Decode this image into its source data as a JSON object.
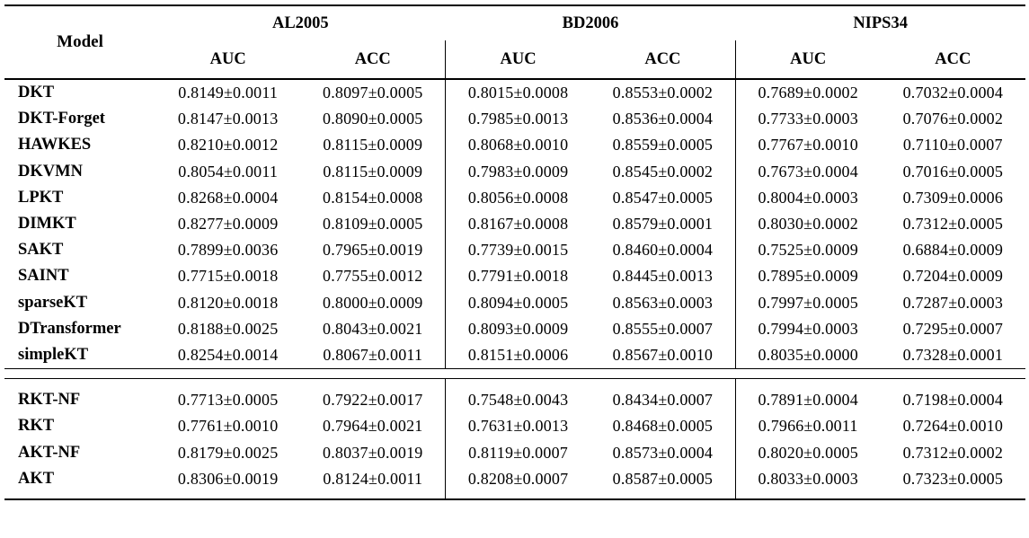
{
  "page": {
    "background": "#ffffff",
    "text_color": "#000000",
    "rule_color": "#000000"
  },
  "table": {
    "model_header": "Model",
    "groups": [
      {
        "label": "AL2005",
        "sub": [
          "AUC",
          "ACC"
        ]
      },
      {
        "label": "BD2006",
        "sub": [
          "AUC",
          "ACC"
        ]
      },
      {
        "label": "NIPS34",
        "sub": [
          "AUC",
          "ACC"
        ]
      }
    ],
    "sections": [
      {
        "rows": [
          {
            "model": "DKT",
            "values": [
              "0.8149±0.0011",
              "0.8097±0.0005",
              "0.8015±0.0008",
              "0.8553±0.0002",
              "0.7689±0.0002",
              "0.7032±0.0004"
            ]
          },
          {
            "model": "DKT-Forget",
            "values": [
              "0.8147±0.0013",
              "0.8090±0.0005",
              "0.7985±0.0013",
              "0.8536±0.0004",
              "0.7733±0.0003",
              "0.7076±0.0002"
            ]
          },
          {
            "model": "HAWKES",
            "values": [
              "0.8210±0.0012",
              "0.8115±0.0009",
              "0.8068±0.0010",
              "0.8559±0.0005",
              "0.7767±0.0010",
              "0.7110±0.0007"
            ]
          },
          {
            "model": "DKVMN",
            "values": [
              "0.8054±0.0011",
              "0.8115±0.0009",
              "0.7983±0.0009",
              "0.8545±0.0002",
              "0.7673±0.0004",
              "0.7016±0.0005"
            ]
          },
          {
            "model": "LPKT",
            "values": [
              "0.8268±0.0004",
              "0.8154±0.0008",
              "0.8056±0.0008",
              "0.8547±0.0005",
              "0.8004±0.0003",
              "0.7309±0.0006"
            ]
          },
          {
            "model": "DIMKT",
            "values": [
              "0.8277±0.0009",
              "0.8109±0.0005",
              "0.8167±0.0008",
              "0.8579±0.0001",
              "0.8030±0.0002",
              "0.7312±0.0005"
            ]
          },
          {
            "model": "SAKT",
            "values": [
              "0.7899±0.0036",
              "0.7965±0.0019",
              "0.7739±0.0015",
              "0.8460±0.0004",
              "0.7525±0.0009",
              "0.6884±0.0009"
            ]
          },
          {
            "model": "SAINT",
            "values": [
              "0.7715±0.0018",
              "0.7755±0.0012",
              "0.7791±0.0018",
              "0.8445±0.0013",
              "0.7895±0.0009",
              "0.7204±0.0009"
            ]
          },
          {
            "model": "sparseKT",
            "values": [
              "0.8120±0.0018",
              "0.8000±0.0009",
              "0.8094±0.0005",
              "0.8563±0.0003",
              "0.7997±0.0005",
              "0.7287±0.0003"
            ]
          },
          {
            "model": "DTransformer",
            "values": [
              "0.8188±0.0025",
              "0.8043±0.0021",
              "0.8093±0.0009",
              "0.8555±0.0007",
              "0.7994±0.0003",
              "0.7295±0.0007"
            ]
          },
          {
            "model": "simpleKT",
            "values": [
              "0.8254±0.0014",
              "0.8067±0.0011",
              "0.8151±0.0006",
              "0.8567±0.0010",
              "0.8035±0.0000",
              "0.7328±0.0001"
            ]
          }
        ]
      },
      {
        "rows": [
          {
            "model": "RKT-NF",
            "values": [
              "0.7713±0.0005",
              "0.7922±0.0017",
              "0.7548±0.0043",
              "0.8434±0.0007",
              "0.7891±0.0004",
              "0.7198±0.0004"
            ]
          },
          {
            "model": "RKT",
            "values": [
              "0.7761±0.0010",
              "0.7964±0.0021",
              "0.7631±0.0013",
              "0.8468±0.0005",
              "0.7966±0.0011",
              "0.7264±0.0010"
            ]
          },
          {
            "model": "AKT-NF",
            "values": [
              "0.8179±0.0025",
              "0.8037±0.0019",
              "0.8119±0.0007",
              "0.8573±0.0004",
              "0.8020±0.0005",
              "0.7312±0.0002"
            ]
          },
          {
            "model": "AKT",
            "values": [
              "0.8306±0.0019",
              "0.8124±0.0011",
              "0.8208±0.0007",
              "0.8587±0.0005",
              "0.8033±0.0003",
              "0.7323±0.0005"
            ]
          }
        ]
      }
    ]
  }
}
